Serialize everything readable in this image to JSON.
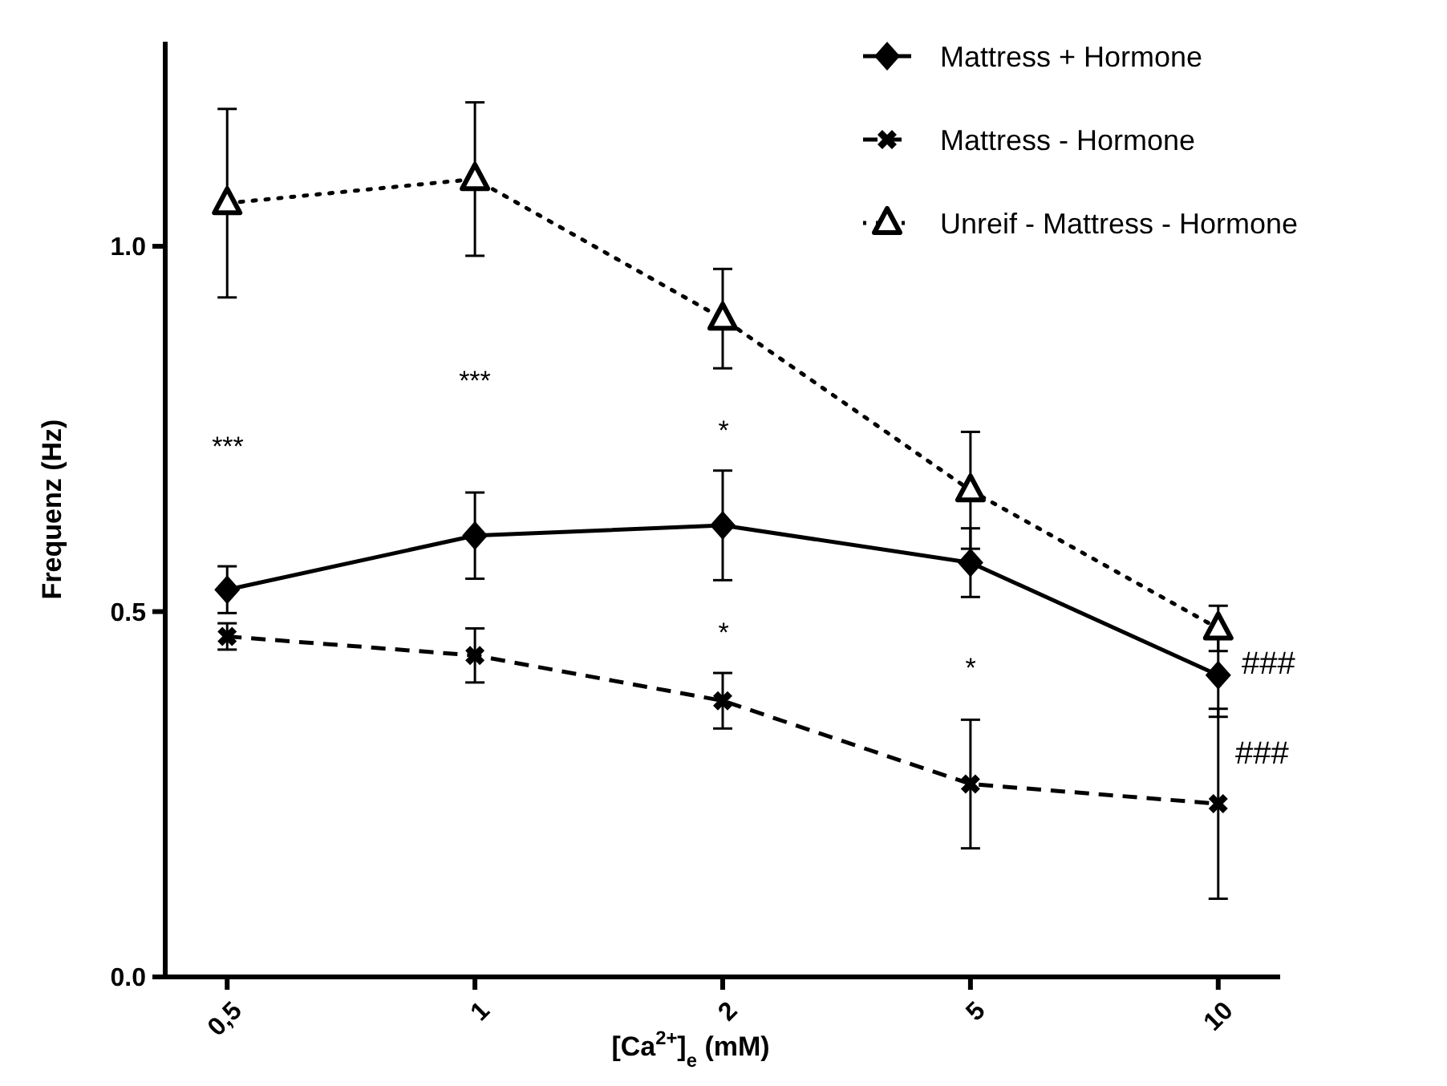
{
  "chart_data": {
    "type": "line",
    "xlabel": "[Ca$^{2+}$]$_{e}$ (mM)",
    "ylabel": "Frequenz (Hz)",
    "categories": [
      "0,5",
      "1",
      "2",
      "5",
      "10"
    ],
    "ylim": [
      0,
      1.28
    ],
    "yticks": [
      {
        "value": 0,
        "label": "0.0"
      },
      {
        "value": 0.5,
        "label": "0.5"
      },
      {
        "value": 1,
        "label": "1.0"
      }
    ],
    "grid": false,
    "legend": "top right",
    "series": [
      {
        "name": "Mattress + Hormone",
        "color": "#000000",
        "marker": "diamond",
        "line_style": "solid",
        "values": [
          0.53,
          0.604,
          0.618,
          0.567,
          0.413
        ],
        "errors": [
          0.032,
          0.059,
          0.075,
          0.047,
          0.057
        ]
      },
      {
        "name": "Mattress - Hormone",
        "color": "#000000",
        "marker": "cross",
        "line_style": "dashed",
        "values": [
          0.466,
          0.44,
          0.378,
          0.264,
          0.237
        ],
        "errors": [
          0.018,
          0.037,
          0.038,
          0.088,
          0.13
        ]
      },
      {
        "name": "Unreif - Mattress - Hormone",
        "color": "#000000",
        "marker": "triangle",
        "line_style": "dotted",
        "values": [
          1.059,
          1.092,
          0.901,
          0.666,
          0.477
        ],
        "errors": [
          0.129,
          0.105,
          0.068,
          0.08,
          0.031
        ]
      }
    ],
    "annotations": [
      "***",
      "***",
      "*",
      "*",
      "*",
      "###",
      "###"
    ]
  }
}
